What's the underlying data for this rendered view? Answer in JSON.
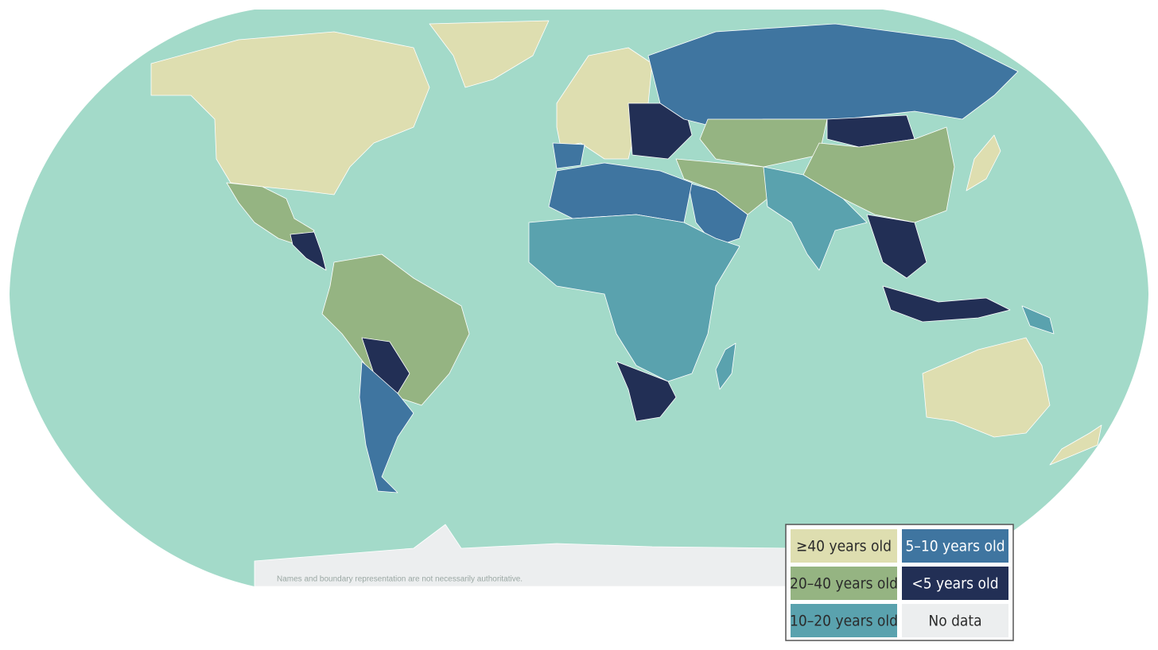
{
  "map": {
    "disclaimer": "Names and boundary representation are not necessarily authoritative.",
    "legend": [
      {
        "label": "≥40 years old",
        "color": "#dedeb0"
      },
      {
        "label": "5–10 years old",
        "color": "#3f75a0"
      },
      {
        "label": "20–40 years old",
        "color": "#95b482"
      },
      {
        "label": "<5 years old",
        "color": "#222f55"
      },
      {
        "label": "10–20 years old",
        "color": "#5aa2ae"
      },
      {
        "label": "No data",
        "color": "#eceeef"
      }
    ]
  }
}
